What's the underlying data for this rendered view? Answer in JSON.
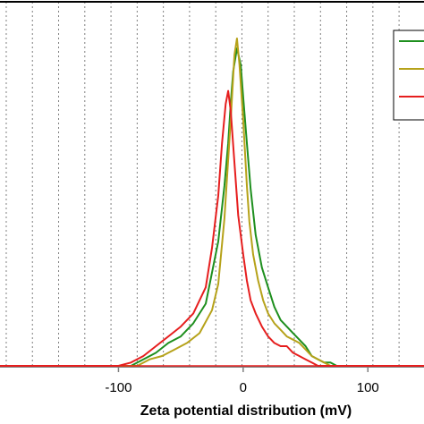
{
  "chart_data": {
    "type": "line",
    "xlabel": "Zeta potential distribution (mV)",
    "ylabel": "",
    "title": "",
    "xlim": [
      -195,
      145
    ],
    "ylim": [
      0,
      100
    ],
    "x_ticks": [
      -100,
      0,
      100
    ],
    "x_tick_labels": [
      "-100",
      "0",
      "100"
    ],
    "grid": "vertical dotted",
    "legend_placement": "top-right",
    "series": [
      {
        "color": "#1e8f1e",
        "x": [
          -195,
          -90,
          -80,
          -70,
          -60,
          -50,
          -40,
          -30,
          -20,
          -15,
          -12,
          -10,
          -8,
          -5,
          -2,
          0,
          3,
          6,
          10,
          15,
          20,
          25,
          30,
          35,
          40,
          45,
          50,
          55,
          60,
          65,
          70,
          75,
          80,
          145
        ],
        "y": [
          0,
          0,
          2,
          4,
          7,
          9,
          13,
          19,
          38,
          55,
          68,
          80,
          90,
          97,
          92,
          82,
          68,
          54,
          40,
          30,
          24,
          18,
          14,
          12,
          10,
          8,
          6,
          3,
          2,
          1,
          1,
          0,
          0,
          0
        ]
      },
      {
        "color": "#b6a21a",
        "x": [
          -195,
          -85,
          -75,
          -65,
          -55,
          -45,
          -35,
          -25,
          -20,
          -15,
          -10,
          -7,
          -5,
          -3,
          0,
          3,
          5,
          8,
          12,
          16,
          20,
          25,
          30,
          35,
          40,
          45,
          50,
          55,
          60,
          65,
          70,
          145
        ],
        "y": [
          0,
          0,
          2,
          3,
          5,
          7,
          10,
          17,
          25,
          45,
          75,
          95,
          100,
          92,
          75,
          55,
          44,
          34,
          26,
          20,
          16,
          13,
          11,
          9,
          8,
          7,
          5,
          3,
          2,
          1,
          0,
          0
        ]
      },
      {
        "color": "#e61e1e",
        "x": [
          -195,
          -100,
          -90,
          -80,
          -70,
          -60,
          -50,
          -40,
          -30,
          -25,
          -20,
          -17,
          -14,
          -12,
          -10,
          -7,
          -4,
          0,
          3,
          6,
          10,
          15,
          20,
          25,
          30,
          35,
          40,
          45,
          50,
          55,
          60,
          145
        ],
        "y": [
          0,
          0,
          1,
          3,
          6,
          9,
          12,
          16,
          24,
          36,
          52,
          68,
          80,
          84,
          78,
          62,
          46,
          34,
          26,
          20,
          16,
          12,
          9,
          7,
          6,
          6,
          4,
          3,
          2,
          1,
          0,
          0
        ]
      }
    ]
  },
  "colors": {
    "grid": "#7f7f7f",
    "axis": "#7f7f7f",
    "baseline": "#e61e1e"
  }
}
